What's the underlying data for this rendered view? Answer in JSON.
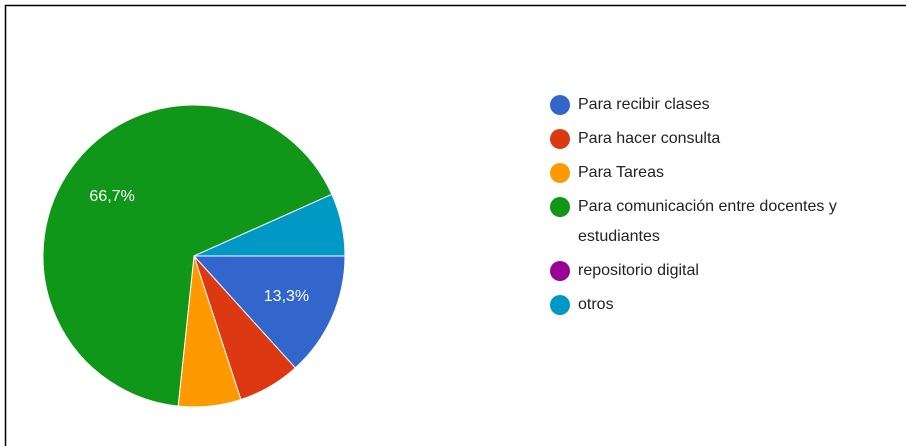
{
  "chart_data": {
    "type": "pie",
    "categories": [
      "Para recibir clases",
      "Para hacer consulta",
      "Para Tareas",
      "Para comunicación entre docentes y estudiantes",
      "repositorio digital",
      "otros"
    ],
    "values": [
      13.3,
      6.7,
      6.7,
      66.7,
      0,
      6.7
    ],
    "value_labels": [
      "13,3%",
      null,
      null,
      "66,7%",
      null,
      null
    ],
    "colors": [
      "#3366cc",
      "#dc3912",
      "#ff9900",
      "#109618",
      "#990099",
      "#0099c6"
    ],
    "legend": "right"
  }
}
